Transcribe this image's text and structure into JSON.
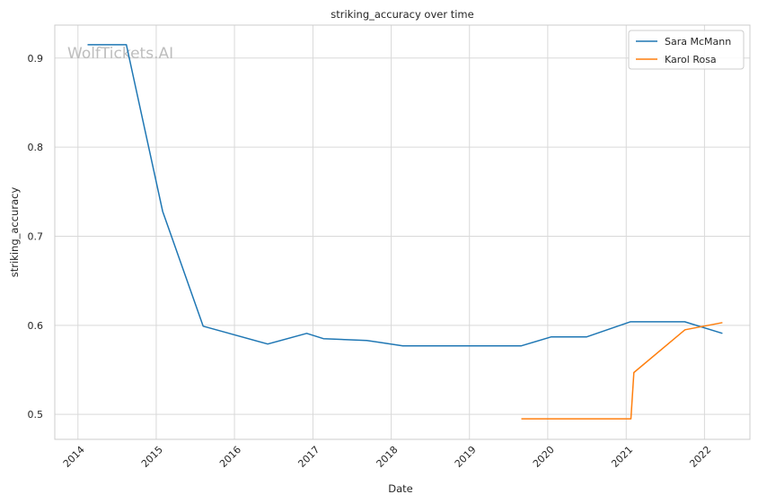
{
  "chart_data": {
    "type": "line",
    "title": "striking_accuracy over time",
    "xlabel": "Date",
    "ylabel": "striking_accuracy",
    "watermark": "WolfTickets.AI",
    "x_ticks": [
      "2014",
      "2015",
      "2016",
      "2017",
      "2018",
      "2019",
      "2020",
      "2021",
      "2022"
    ],
    "y_ticks": [
      "0.5",
      "0.6",
      "0.7",
      "0.8",
      "0.9"
    ],
    "xlim": [
      "2013-09-15",
      "2022-08-01"
    ],
    "ylim": [
      0.472,
      0.937
    ],
    "grid": true,
    "legend_position": "top-right",
    "series": [
      {
        "name": "Sara McMann",
        "color": "#1f77b4",
        "points": [
          {
            "x": "2014-02-15",
            "y": 0.915
          },
          {
            "x": "2014-08-15",
            "y": 0.915
          },
          {
            "x": "2015-01-31",
            "y": 0.728
          },
          {
            "x": "2015-08-08",
            "y": 0.599
          },
          {
            "x": "2016-06-04",
            "y": 0.579
          },
          {
            "x": "2016-12-03",
            "y": 0.591
          },
          {
            "x": "2017-02-19",
            "y": 0.585
          },
          {
            "x": "2017-09-09",
            "y": 0.583
          },
          {
            "x": "2018-02-24",
            "y": 0.577
          },
          {
            "x": "2019-08-31",
            "y": 0.577
          },
          {
            "x": "2020-01-18",
            "y": 0.587
          },
          {
            "x": "2020-07-01",
            "y": 0.587
          },
          {
            "x": "2021-01-20",
            "y": 0.604
          },
          {
            "x": "2021-10-01",
            "y": 0.604
          },
          {
            "x": "2022-03-26",
            "y": 0.591
          }
        ]
      },
      {
        "name": "Karol Rosa",
        "color": "#ff7f0e",
        "points": [
          {
            "x": "2019-08-31",
            "y": 0.495
          },
          {
            "x": "2021-01-23",
            "y": 0.495
          },
          {
            "x": "2021-02-06",
            "y": 0.547
          },
          {
            "x": "2021-10-02",
            "y": 0.595
          },
          {
            "x": "2022-03-26",
            "y": 0.603
          }
        ]
      }
    ]
  }
}
